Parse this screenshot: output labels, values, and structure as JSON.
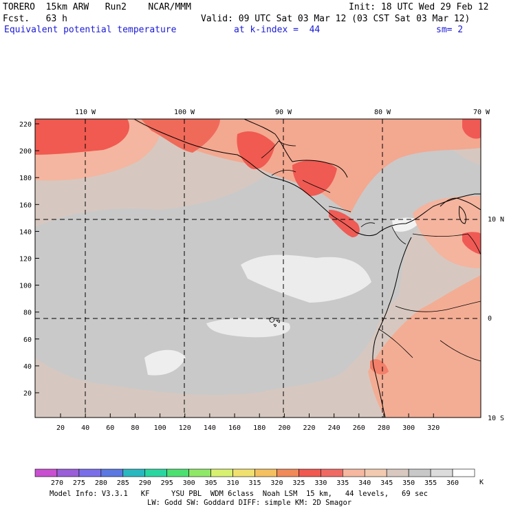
{
  "header": {
    "model_line": "TORERO  15km ARW   Run2    NCAR/MMM",
    "init": "Init: 18 UTC Wed 29 Feb 12",
    "fcst": "Fcst.   63 h",
    "valid": "Valid: 09 UTC Sat 03 Mar 12 (03 CST Sat 03 Mar 12)",
    "field": "Equivalent potential temperature",
    "level": "at k-index =  44",
    "smooth": "sm= 2"
  },
  "map": {
    "x_ticks": [
      "20",
      "40",
      "60",
      "80",
      "100",
      "120",
      "140",
      "160",
      "180",
      "200",
      "220",
      "240",
      "260",
      "280",
      "300",
      "320"
    ],
    "y_ticks": [
      "20",
      "40",
      "60",
      "80",
      "100",
      "120",
      "140",
      "160",
      "180",
      "200",
      "220"
    ],
    "lon_labels": [
      "110 W",
      "100 W",
      "90 W",
      "80 W",
      "70 W"
    ],
    "lat_labels": [
      "10 N",
      "0",
      "10 S"
    ]
  },
  "colorbar": {
    "labels": [
      "270",
      "275",
      "280",
      "285",
      "290",
      "295",
      "300",
      "305",
      "310",
      "315",
      "320",
      "325",
      "330",
      "335",
      "340",
      "345",
      "350",
      "355",
      "360"
    ],
    "unit": "K",
    "colors": [
      "#c84fd0",
      "#9a5ed8",
      "#7a6ee8",
      "#5a78e0",
      "#2ab8c0",
      "#2ad6a0",
      "#4ce070",
      "#90e868",
      "#d8f070",
      "#f0e070",
      "#f4c060",
      "#f08a58",
      "#f05850",
      "#f06a64",
      "#f6b8a0",
      "#f2cab0",
      "#d8c8c0",
      "#c8c8c8",
      "#dcdcdc",
      "#ffffff"
    ]
  },
  "footer": {
    "line1": "Model Info: V3.3.1   KF     YSU PBL  WDM 6class  Noah LSM  15 km,   44 levels,   69 sec",
    "line2": "LW: Godd SW: Goddard DIFF: simple KM: 2D Smagor"
  }
}
